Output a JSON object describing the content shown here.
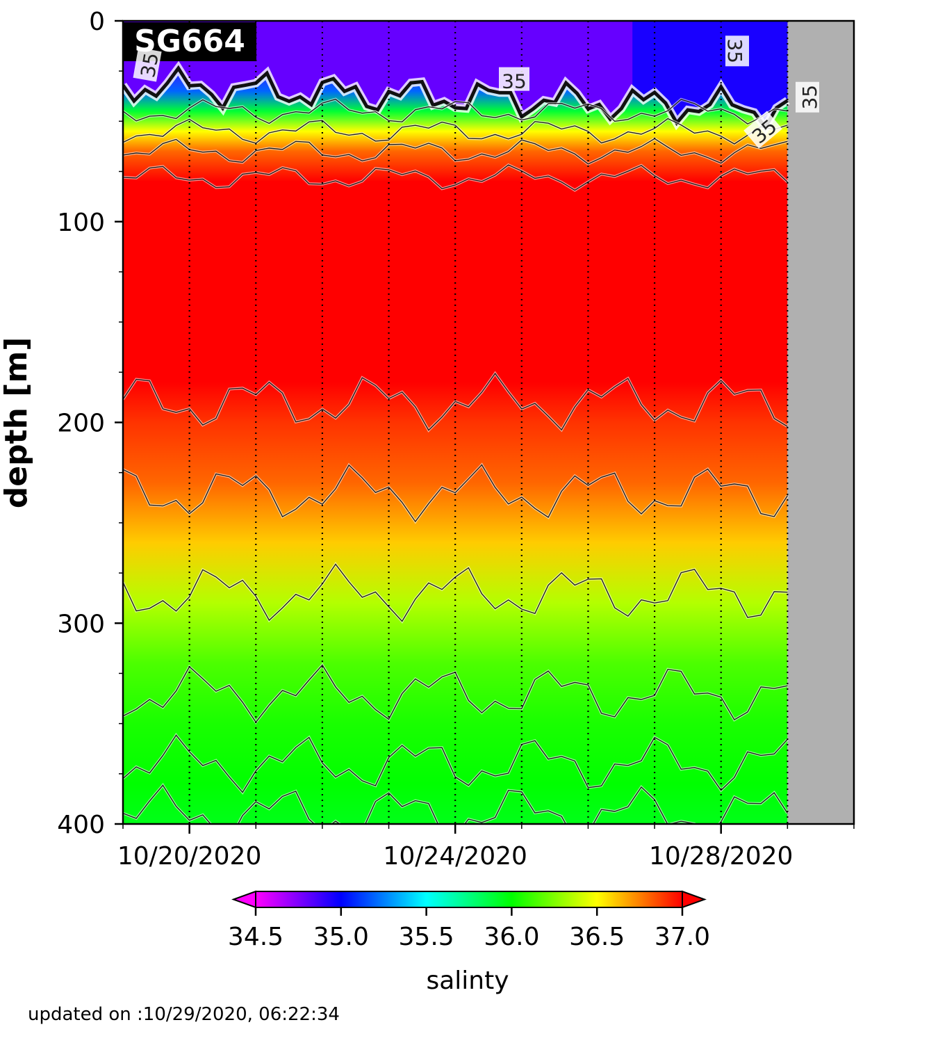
{
  "chart_data": {
    "type": "heatmap",
    "platform_label": "SG664",
    "ylabel": "depth [m]",
    "ylim": [
      400,
      0
    ],
    "y_ticks": [
      0,
      100,
      200,
      300,
      400
    ],
    "y_tick_labels": [
      "0",
      "100",
      "200",
      "300",
      "400"
    ],
    "x_range": [
      "10/19/2020",
      "10/30/2020"
    ],
    "x_ticks": [
      "10/20/2020",
      "10/24/2020",
      "10/28/2020"
    ],
    "x_tick_labels": [
      "10/20/2020",
      "10/24/2020",
      "10/28/2020"
    ],
    "no_data_after": "10/29/2020",
    "contour_labels": [
      "35",
      "35",
      "35",
      "35",
      "35"
    ],
    "colorbar": {
      "label": "salinty",
      "min": 34.5,
      "max": 37.0,
      "ticks": [
        34.5,
        35.0,
        35.5,
        36.0,
        36.5,
        37.0
      ],
      "tick_labels": [
        "34.5",
        "35.0",
        "35.5",
        "36.0",
        "36.5",
        "37.0"
      ],
      "extend": "both",
      "colormap_stops": [
        "#ff00ff",
        "#0000ff",
        "#00ffff",
        "#00ff00",
        "#ffff00",
        "#ff0000"
      ]
    },
    "salinity_profile": {
      "depth": [
        0,
        20,
        35,
        45,
        55,
        65,
        80,
        100,
        180,
        200,
        230,
        260,
        290,
        320,
        350,
        380,
        400
      ],
      "values": [
        34.8,
        34.85,
        35.2,
        35.9,
        36.5,
        36.8,
        37.0,
        37.0,
        37.0,
        36.9,
        36.8,
        36.6,
        36.35,
        36.15,
        36.05,
        36.0,
        35.95
      ]
    }
  },
  "footer": {
    "updated_text": "updated on :10/29/2020, 06:22:34"
  }
}
